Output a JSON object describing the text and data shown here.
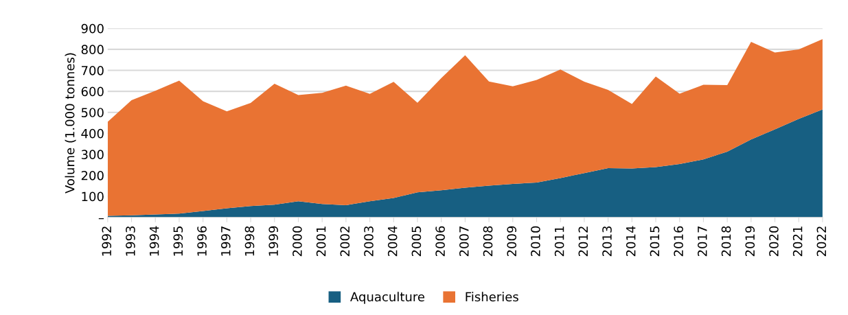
{
  "chart_data": {
    "type": "area",
    "stacked": true,
    "ylabel": "Volume (1.000 tonnes)",
    "categories": [
      "1992",
      "1993",
      "1994",
      "1995",
      "1996",
      "1997",
      "1998",
      "1999",
      "2000",
      "2001",
      "2002",
      "2003",
      "2004",
      "2005",
      "2006",
      "2007",
      "2008",
      "2009",
      "2010",
      "2011",
      "2012",
      "2013",
      "2014",
      "2015",
      "2016",
      "2017",
      "2018",
      "2019",
      "2020",
      "2021",
      "2022"
    ],
    "series": [
      {
        "name": "Aquaculture",
        "color": "#175f82",
        "values": [
          7,
          10,
          14,
          18,
          30,
          43,
          54,
          60,
          77,
          64,
          58,
          77,
          92,
          119,
          129,
          141,
          151,
          159,
          166,
          187,
          211,
          234,
          233,
          239,
          254,
          276,
          313,
          371,
          419,
          469,
          514
        ]
      },
      {
        "name": "Fisheries",
        "color": "#e97333",
        "values": [
          448,
          548,
          589,
          633,
          523,
          462,
          491,
          576,
          505,
          529,
          569,
          511,
          553,
          427,
          534,
          631,
          496,
          465,
          488,
          517,
          435,
          373,
          307,
          432,
          335,
          355,
          317,
          465,
          366,
          331,
          335
        ]
      }
    ],
    "ylim": [
      0,
      900
    ],
    "yticks": [
      {
        "value": 0,
        "label": "–"
      },
      100,
      200,
      300,
      400,
      500,
      600,
      700,
      800,
      900
    ],
    "grid": "y",
    "legend": "bottom"
  }
}
